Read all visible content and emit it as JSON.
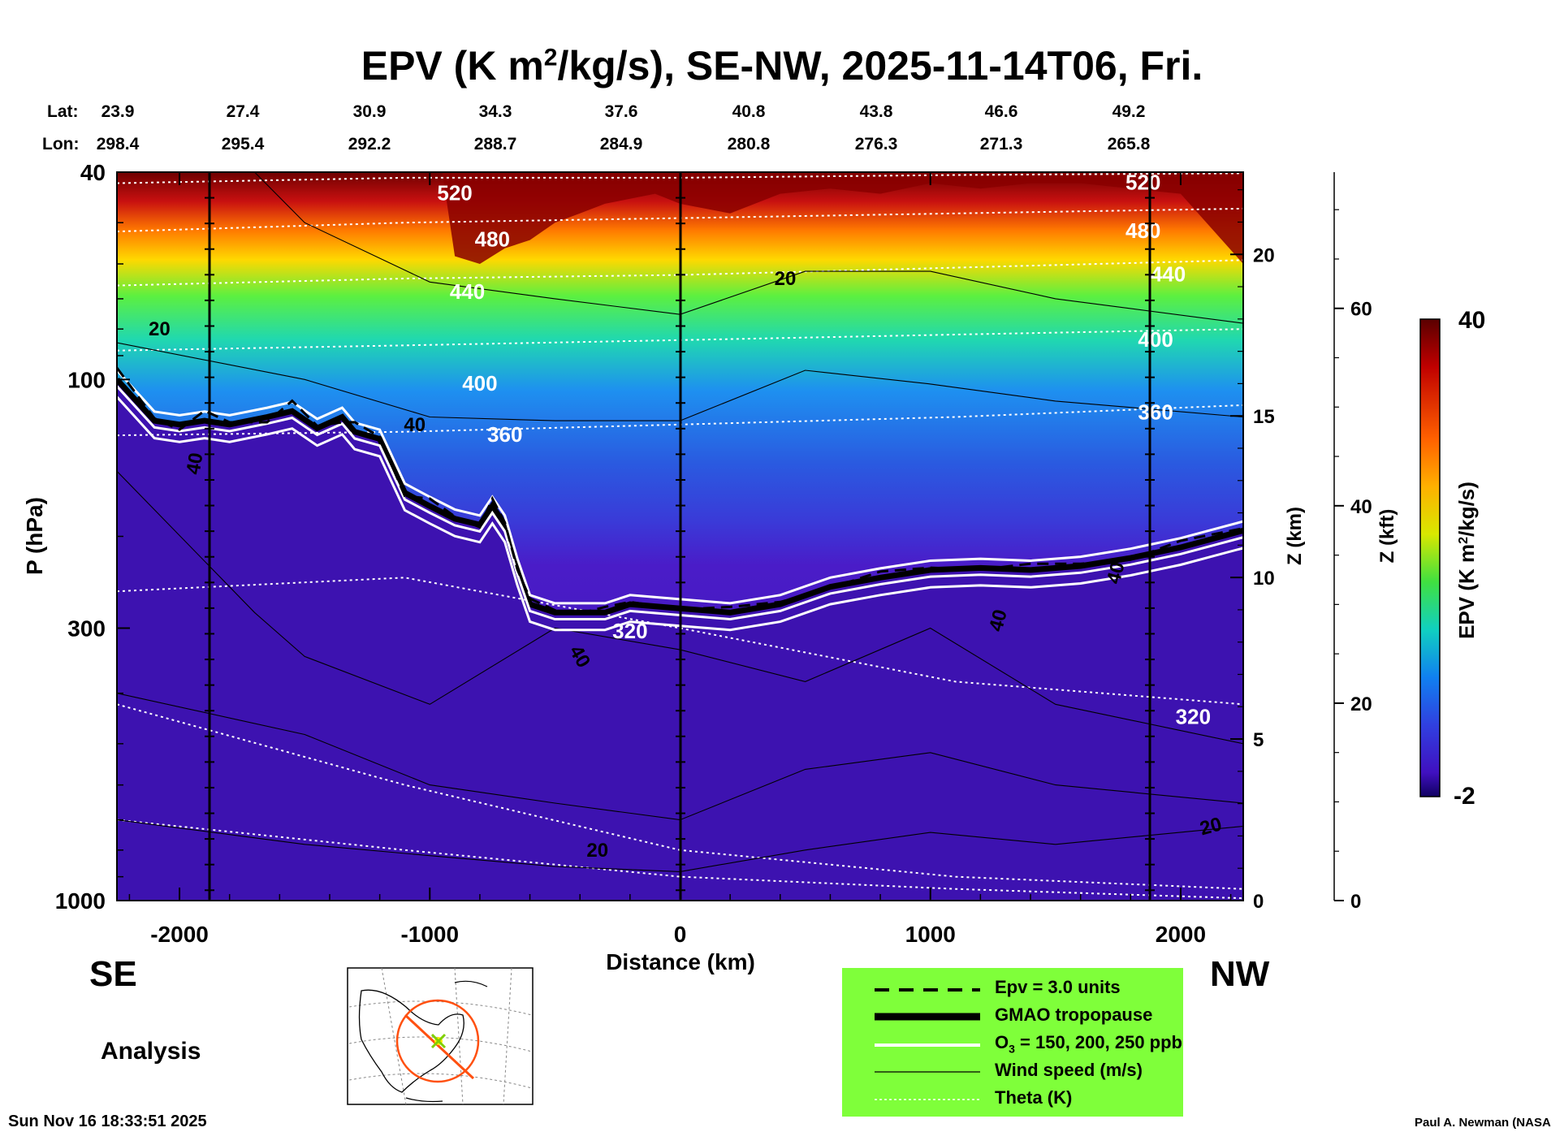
{
  "title": {
    "main": "EPV (K m",
    "sup": "2",
    "rest": "/kg/s), SE-NW, 2025-11-14T06, Fri."
  },
  "top_axis": {
    "lat_label": "Lat:",
    "lon_label": "Lon:",
    "lat": [
      "23.9",
      "27.4",
      "30.9",
      "34.3",
      "37.6",
      "40.8",
      "43.8",
      "46.6",
      "49.2"
    ],
    "lon": [
      "298.4",
      "295.4",
      "292.2",
      "288.7",
      "284.9",
      "280.8",
      "276.3",
      "271.3",
      "265.8"
    ]
  },
  "chart_data": {
    "type": "heatmap",
    "title": "EPV (K m2/kg/s), SE-NW, 2025-11-14T06, Fri.",
    "xlabel": "Distance (km)",
    "ylabel": "P (hPa)",
    "y2label": "Z (km)",
    "y3label": "Z (kft)",
    "xlim": [
      -2250,
      2250
    ],
    "ylim": [
      1000,
      40
    ],
    "y_scale": "log",
    "x_ticks": [
      "-2000",
      "-1000",
      "0",
      "1000",
      "2000"
    ],
    "x_tick_values": [
      -2000,
      -1000,
      0,
      1000,
      2000
    ],
    "y_ticks": [
      "40",
      "100",
      "300",
      "1000"
    ],
    "y_tick_values": [
      40,
      100,
      300,
      1000
    ],
    "z_km_ticks": [
      "0",
      "5",
      "10",
      "15",
      "20"
    ],
    "z_km_values": [
      0,
      5,
      10,
      15,
      20
    ],
    "z_kft_ticks": [
      "0",
      "20",
      "40",
      "60"
    ],
    "z_kft_values": [
      0,
      20,
      40,
      60
    ],
    "colorbar": {
      "label": "EPV (K m2/kg/s)",
      "min": -2,
      "max": 40,
      "min_label": "-2",
      "max_label": "40"
    },
    "theta_contours": [
      {
        "label": "520",
        "level": 520
      },
      {
        "label": "480",
        "level": 480
      },
      {
        "label": "440",
        "level": 440
      },
      {
        "label": "400",
        "level": 400
      },
      {
        "label": "360",
        "level": 360
      },
      {
        "label": "320",
        "level": 320
      }
    ],
    "wind_labels": [
      "20",
      "40"
    ],
    "tropopause": {
      "x": [
        -2250,
        -2100,
        -2000,
        -1900,
        -1800,
        -1650,
        -1550,
        -1450,
        -1350,
        -1300,
        -1200,
        -1100,
        -1000,
        -900,
        -800,
        -750,
        -700,
        -650,
        -600,
        -500,
        -400,
        -300,
        -200,
        0,
        200,
        400,
        600,
        800,
        1000,
        1200,
        1400,
        1600,
        1800,
        2000,
        2250
      ],
      "p": [
        100,
        120,
        122,
        120,
        122,
        118,
        115,
        124,
        118,
        126,
        130,
        165,
        175,
        185,
        190,
        175,
        190,
        230,
        270,
        280,
        280,
        280,
        270,
        275,
        280,
        270,
        250,
        240,
        232,
        230,
        232,
        228,
        220,
        210,
        195
      ]
    },
    "legend": [
      {
        "style": "dashed",
        "label": "Epv = 3.0 units"
      },
      {
        "style": "thick-black",
        "label": "GMAO tropopause"
      },
      {
        "style": "white",
        "label": "O",
        "sub": "3",
        "label_rest": " = 150, 200, 250 ppb"
      },
      {
        "style": "thin-black",
        "label": "Wind speed (m/s)"
      },
      {
        "style": "dotted-white",
        "label": "Theta (K)"
      }
    ]
  },
  "direction": {
    "left": "SE",
    "right": "NW"
  },
  "analysis_label": "Analysis",
  "footer": {
    "date": "Sun Nov 16 18:33:51 2025",
    "credit": "Paul A. Newman (NASA"
  },
  "colors": {
    "stratosphere_high": "#7a0000",
    "troposphere": "#3a12b0",
    "legend_bg": "#7fff3a",
    "tropopause": "#000000"
  }
}
